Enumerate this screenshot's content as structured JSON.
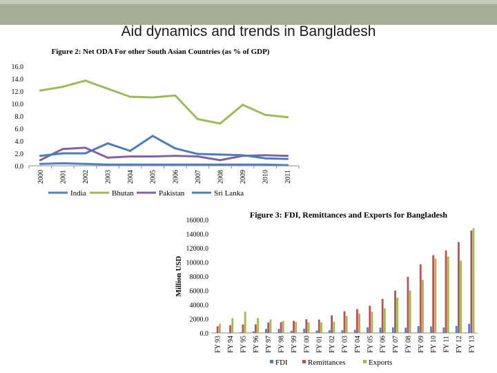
{
  "slide": {
    "title": "Aid dynamics and trends in Bangladesh"
  },
  "colors": {
    "topbar": "#a8ad9a",
    "india": "#4f81bd",
    "bhutan": "#9bbb59",
    "pakistan": "#8064a2",
    "srilanka": "#4a7ebb",
    "fdi": "#4f81bd",
    "remittances": "#c0504d",
    "exports": "#9bbb59"
  },
  "chart_data": [
    {
      "type": "line",
      "title": "Figure 2: Net ODA For other South Asian Countries (as % of GDP)",
      "x": [
        "2000",
        "2001",
        "2002",
        "2003",
        "2004",
        "2005",
        "2006",
        "2007",
        "2008",
        "2009",
        "2010",
        "2011"
      ],
      "ylim": [
        0,
        16
      ],
      "yticks": [
        "0.0",
        "2.0",
        "4.0",
        "6.0",
        "8.0",
        "10.0",
        "12.0",
        "14.0",
        "16.0"
      ],
      "legend_position": "bottom",
      "series": [
        {
          "name": "India",
          "color": "#4f81bd",
          "values": [
            0.3,
            0.4,
            0.3,
            0.2,
            0.2,
            0.2,
            0.2,
            0.2,
            0.2,
            0.2,
            0.2,
            0.1
          ]
        },
        {
          "name": "Bhutan",
          "color": "#9bbb59",
          "values": [
            12.1,
            12.7,
            13.7,
            12.4,
            11.1,
            11.0,
            11.3,
            7.5,
            6.8,
            9.8,
            8.2,
            7.8
          ]
        },
        {
          "name": "Pakistan",
          "color": "#8064a2",
          "values": [
            0.9,
            2.7,
            2.9,
            1.3,
            1.5,
            1.5,
            1.6,
            1.5,
            0.9,
            1.6,
            1.7,
            1.6
          ]
        },
        {
          "name": "Sri Lanka",
          "color": "#4a7ebb",
          "values": [
            1.6,
            2.0,
            2.0,
            3.6,
            2.4,
            4.8,
            2.8,
            1.9,
            1.8,
            1.7,
            1.2,
            1.1
          ]
        }
      ]
    },
    {
      "type": "bar",
      "title": "Figure 3: FDI, Remittances and Exports for Bangladesh",
      "ylabel": "Million USD",
      "ylim": [
        0,
        16000
      ],
      "yticks": [
        "0.0",
        "2000.0",
        "4000.0",
        "6000.0",
        "8000.0",
        "10000.0",
        "12000.0",
        "14000.0",
        "16000.0"
      ],
      "legend_position": "bottom",
      "categories": [
        "FY 93",
        "FY 94",
        "FY 95",
        "FY 96",
        "FY 97",
        "FY 98",
        "FY 99",
        "FY 00",
        "FY 01",
        "FY 02",
        "FY 03",
        "FY 04",
        "FY 05",
        "FY 06",
        "FY 07",
        "FY 08",
        "FY 09",
        "FY 10",
        "FY 11",
        "FY 12",
        "FY 13"
      ],
      "series": [
        {
          "name": "FDI",
          "color": "#4f81bd",
          "values": [
            15,
            11,
            92,
            232,
            576,
            576,
            309,
            578,
            354,
            393,
            379,
            460,
            804,
            745,
            793,
            748,
            961,
            913,
            779,
            1000,
            1290
          ]
        },
        {
          "name": "Remittances",
          "color": "#c0504d",
          "values": [
            944,
            1089,
            1198,
            1217,
            1475,
            1525,
            1706,
            1949,
            1882,
            2501,
            3062,
            3372,
            3848,
            4802,
            5979,
            7915,
            9689,
            10987,
            11650,
            12843,
            14461
          ]
        },
        {
          "name": "Exports",
          "color": "#9bbb59",
          "values": [
            1300,
            2100,
            3000,
            2100,
            1900,
            1700,
            1550,
            1500,
            1500,
            1600,
            2400,
            2750,
            3000,
            3500,
            5000,
            6000,
            7500,
            10500,
            10800,
            10200,
            14800
          ]
        }
      ]
    }
  ]
}
